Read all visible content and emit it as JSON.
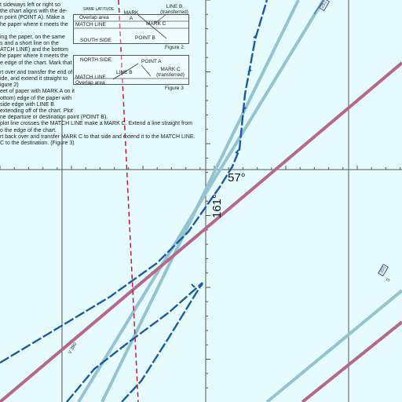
{
  "instructions": [
    "t sideways left or right so",
    "the chart aligns with the de-",
    "n point (POINT A).  Make a",
    "he paper where it meets the",
    "",
    "ing the paper, on the same",
    "s and a short line on the",
    "ATCH LINE) and the bottom",
    "he paper where it meets the",
    "e edge of the chart.  Mark that",
    "",
    "rt over and transfer the end of",
    "ide, and extend it straight to",
    "igure 2)",
    "eet of paper with MARK A on it",
    "ottom) edge of the paper with",
    "side edge with LINE B",
    "extending off of the chart.  Plot",
    "ne departure or destination point (POINT B).",
    "plot line crosses the MATCH LINE make a MARK C.  Extend a line straight from",
    "o the edge of the chart.",
    "rt back over and transfer MARK C to that side and extend it to the MATCH LINE.",
    "C to the destination.  (Figure 3)"
  ],
  "figure2": {
    "top_label": "SAME LATITUDE",
    "overlap_area": "Overlap area",
    "mark_a": "MARK A",
    "line_b": "LINE B (transferred)",
    "match_line": "MATCH LINE",
    "mark_c": "MARK C",
    "south_side": "SOUTH SIDE",
    "point_b": "POINT B",
    "caption": "Figure 2"
  },
  "figure3": {
    "north_side": "NORTH SIDE",
    "point_a": "POINT A",
    "mark_c": "MARK C (transferred)",
    "match_line": "MATCH LINE",
    "line_b": "LINE B",
    "overlap_area": "Overlap area",
    "caption": "Figure 3"
  },
  "labels": {
    "course_57": "57°",
    "course_161": "161°",
    "route_id_top": "282",
    "route_id_right": "355",
    "airway_label": "V 390",
    "tick_label": "S"
  },
  "colors": {
    "water": "#e6fbfd",
    "grid": "#444444",
    "airway_red": "#b7678a",
    "airway_blue": "#93c4cf",
    "boundary_dashed": "#1b5aa8",
    "red_dashed": "#c21a3a"
  }
}
